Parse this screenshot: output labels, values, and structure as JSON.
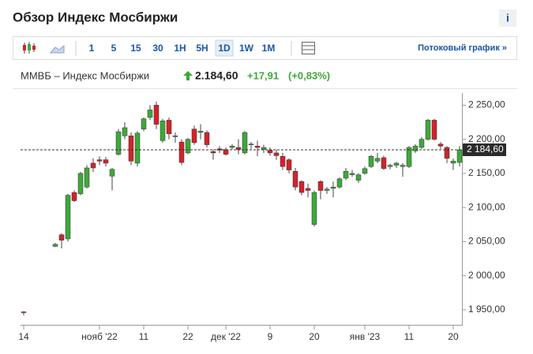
{
  "header": {
    "title": "Обзор Индекс Мосбиржи",
    "info": "i"
  },
  "toolbar": {
    "intervals": [
      "1",
      "5",
      "15",
      "30",
      "1H",
      "5H",
      "1D",
      "1W",
      "1M"
    ],
    "active": "1D",
    "stream_link": "Потоковый график »"
  },
  "quote": {
    "name": "ММВБ – Индекс Мосбиржи",
    "price": "2.184,60",
    "change": "+17,91",
    "change_pct": "(+0,83%)"
  },
  "chart_data": {
    "type": "candlestick",
    "up_color": "#3ea83a",
    "down_color": "#d2232a",
    "categories": [
      "14",
      null,
      null,
      null,
      null,
      null,
      null,
      null,
      null,
      null,
      null,
      null,
      "нояб '22",
      null,
      null,
      null,
      null,
      null,
      null,
      "11",
      null,
      null,
      null,
      null,
      null,
      null,
      "22",
      null,
      null,
      null,
      null,
      null,
      "дек '22",
      null,
      null,
      null,
      null,
      null,
      null,
      "9",
      null,
      null,
      null,
      null,
      null,
      null,
      "20",
      null,
      null,
      null,
      null,
      null,
      null,
      null,
      "янв '23",
      null,
      null,
      null,
      null,
      null,
      null,
      "11",
      null,
      null,
      null,
      null,
      null,
      null,
      "20",
      null
    ],
    "open": [
      1947,
      null,
      null,
      null,
      null,
      2043,
      2060,
      2054,
      2122,
      2120,
      2130,
      2165,
      2170,
      2170,
      2146,
      2178,
      2205,
      2205,
      2165,
      2215,
      2232,
      2250,
      2198,
      2228,
      2205,
      2196,
      2180,
      2215,
      2210,
      2210,
      2182,
      2186,
      2185,
      2188,
      2188,
      2180,
      2192,
      2190,
      2185,
      2184,
      2180,
      2175,
      2170,
      2153,
      2138,
      2128,
      2075,
      2138,
      2125,
      2128,
      2130,
      2143,
      2148,
      2140,
      2150,
      2160,
      2168,
      2173,
      2160,
      2162,
      2160,
      2160,
      2183,
      2188,
      2200,
      2228,
      2193,
      2188,
      2165,
      2166
    ],
    "high": [
      1948,
      null,
      null,
      null,
      null,
      2048,
      2062,
      2120,
      2125,
      2152,
      2162,
      2172,
      2175,
      2174,
      2158,
      2215,
      2225,
      2210,
      2212,
      2232,
      2250,
      2255,
      2230,
      2232,
      2210,
      2200,
      2202,
      2220,
      2222,
      2213,
      2185,
      2190,
      2188,
      2193,
      2200,
      2212,
      2196,
      2198,
      2192,
      2188,
      2185,
      2180,
      2172,
      2158,
      2140,
      2135,
      2125,
      2140,
      2130,
      2138,
      2144,
      2158,
      2155,
      2150,
      2160,
      2177,
      2180,
      2176,
      2164,
      2167,
      2165,
      2190,
      2193,
      2203,
      2230,
      2230,
      2196,
      2190,
      2172,
      2190
    ],
    "low": [
      1942,
      null,
      null,
      null,
      null,
      2042,
      2040,
      2050,
      2108,
      2118,
      2128,
      2152,
      2162,
      2160,
      2125,
      2176,
      2200,
      2162,
      2160,
      2212,
      2228,
      2215,
      2195,
      2200,
      2195,
      2162,
      2178,
      2192,
      2200,
      2188,
      2170,
      2180,
      2176,
      2185,
      2178,
      2178,
      2186,
      2175,
      2180,
      2176,
      2170,
      2155,
      2150,
      2125,
      2118,
      2115,
      2072,
      2112,
      2120,
      2115,
      2128,
      2140,
      2145,
      2136,
      2148,
      2158,
      2165,
      2155,
      2156,
      2158,
      2145,
      2158,
      2180,
      2186,
      2198,
      2198,
      2186,
      2165,
      2155,
      2160
    ],
    "close": [
      1946,
      null,
      null,
      null,
      null,
      2046,
      2052,
      2118,
      2110,
      2150,
      2158,
      2158,
      2168,
      2165,
      2156,
      2211,
      2217,
      2168,
      2209,
      2230,
      2243,
      2222,
      2227,
      2208,
      2204,
      2166,
      2200,
      2195,
      2212,
      2192,
      2180,
      2184,
      2178,
      2190,
      2185,
      2210,
      2193,
      2188,
      2188,
      2180,
      2176,
      2160,
      2155,
      2130,
      2122,
      2125,
      2122,
      2125,
      2127,
      2130,
      2142,
      2153,
      2150,
      2148,
      2157,
      2175,
      2172,
      2157,
      2162,
      2165,
      2162,
      2188,
      2190,
      2200,
      2228,
      2200,
      2190,
      2172,
      2168,
      2184.6
    ],
    "last_price": {
      "value": 2184.6,
      "label": "2 184,60"
    },
    "ylim": [
      1928,
      2262
    ],
    "yticks": [
      {
        "value": 1950,
        "label": "1 950,00"
      },
      {
        "value": 2000,
        "label": "2 000,00"
      },
      {
        "value": 2050,
        "label": "2 050,00"
      },
      {
        "value": 2100,
        "label": "2 100,00"
      },
      {
        "value": 2150,
        "label": "2 150,00"
      },
      {
        "value": 2200,
        "label": "2 200,00"
      },
      {
        "value": 2250,
        "label": "2 250,00"
      }
    ]
  }
}
